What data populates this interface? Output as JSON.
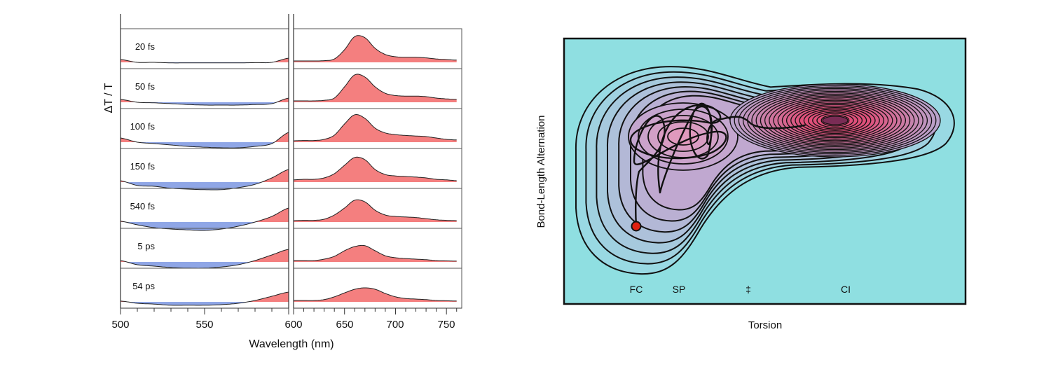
{
  "chart_data": [
    {
      "type": "line",
      "title": "",
      "ylabel": "ΔT / T",
      "xlabel": "Wavelength (nm)",
      "panels": [
        {
          "xlim": [
            500,
            600
          ],
          "x": [
            500,
            510,
            520,
            530,
            540,
            550,
            560,
            570,
            580,
            590,
            600
          ],
          "tick_labels": [
            "500",
            "550"
          ]
        },
        {
          "xlim": [
            600,
            765
          ],
          "x": [
            600,
            610,
            620,
            630,
            640,
            650,
            660,
            670,
            680,
            690,
            700,
            710,
            720,
            730,
            740,
            750,
            760
          ],
          "tick_labels": [
            "600",
            "650",
            "700",
            "750"
          ]
        }
      ],
      "series": [
        {
          "name": "20 fs",
          "visible": [
            0.1,
            0,
            0,
            -0.02,
            -0.02,
            -0.02,
            -0.02,
            -0.02,
            -0.01,
            0,
            0.15
          ],
          "red": [
            0.05,
            0.05,
            0.05,
            0.06,
            0.12,
            0.45,
            0.92,
            0.88,
            0.5,
            0.28,
            0.2,
            0.18,
            0.18,
            0.16,
            0.12,
            0.1,
            0.08
          ]
        },
        {
          "name": "50 fs",
          "visible": [
            0.1,
            0,
            -0.02,
            -0.05,
            -0.08,
            -0.1,
            -0.1,
            -0.1,
            -0.08,
            -0.05,
            0.15
          ],
          "red": [
            0.05,
            0.05,
            0.05,
            0.07,
            0.15,
            0.55,
            0.98,
            0.9,
            0.55,
            0.32,
            0.24,
            0.22,
            0.22,
            0.2,
            0.15,
            0.12,
            0.1
          ]
        },
        {
          "name": "100 fs",
          "visible": [
            0.15,
            0,
            -0.05,
            -0.1,
            -0.15,
            -0.18,
            -0.2,
            -0.2,
            -0.15,
            -0.05,
            0.35
          ],
          "red": [
            0.05,
            0.06,
            0.06,
            0.1,
            0.25,
            0.65,
            0.98,
            0.85,
            0.5,
            0.33,
            0.27,
            0.24,
            0.22,
            0.2,
            0.15,
            0.1,
            0.08
          ]
        },
        {
          "name": "150 fs",
          "visible": [
            0.05,
            -0.12,
            -0.15,
            -0.22,
            -0.25,
            -0.27,
            -0.27,
            -0.2,
            -0.08,
            0.15,
            0.45
          ],
          "red": [
            0.08,
            0.1,
            0.1,
            0.15,
            0.3,
            0.6,
            0.88,
            0.8,
            0.45,
            0.27,
            0.22,
            0.2,
            0.18,
            0.15,
            0.1,
            0.08,
            0.05
          ]
        },
        {
          "name": "540 fs",
          "visible": [
            0.03,
            -0.1,
            -0.2,
            -0.25,
            -0.28,
            -0.3,
            -0.25,
            -0.15,
            0,
            0.2,
            0.5
          ],
          "red": [
            0.05,
            0.06,
            0.06,
            0.1,
            0.25,
            0.5,
            0.78,
            0.72,
            0.42,
            0.25,
            0.2,
            0.18,
            0.16,
            0.12,
            0.08,
            0.06,
            0.05
          ]
        },
        {
          "name": "5 ps",
          "visible": [
            0.05,
            -0.1,
            -0.15,
            -0.2,
            -0.22,
            -0.22,
            -0.18,
            -0.1,
            0.05,
            0.25,
            0.45
          ],
          "red": [
            0.05,
            0.05,
            0.05,
            0.1,
            0.2,
            0.4,
            0.55,
            0.58,
            0.4,
            0.22,
            0.15,
            0.12,
            0.1,
            0.08,
            0.05,
            0.04,
            0.03
          ]
        },
        {
          "name": "54 ps",
          "visible": [
            0.03,
            -0.05,
            -0.08,
            -0.12,
            -0.12,
            -0.12,
            -0.1,
            -0.05,
            0.05,
            0.2,
            0.35
          ],
          "red": [
            0.05,
            0.05,
            0.05,
            0.08,
            0.18,
            0.32,
            0.45,
            0.5,
            0.45,
            0.3,
            0.18,
            0.12,
            0.1,
            0.08,
            0.05,
            0.04,
            0.03
          ]
        }
      ],
      "colors": {
        "positive": "#f47f7f",
        "negative": "#8fa6e6",
        "line": "#222222"
      }
    },
    {
      "type": "contour",
      "title": "",
      "xlabel": "Torsion",
      "ylabel": "Bond-Length Alternation",
      "point_labels": [
        "FC",
        "SP",
        "‡",
        "CI"
      ],
      "colors": {
        "background": "#8fdfe1",
        "minimum": "#d9406f",
        "start_point": "#e02010"
      }
    }
  ]
}
